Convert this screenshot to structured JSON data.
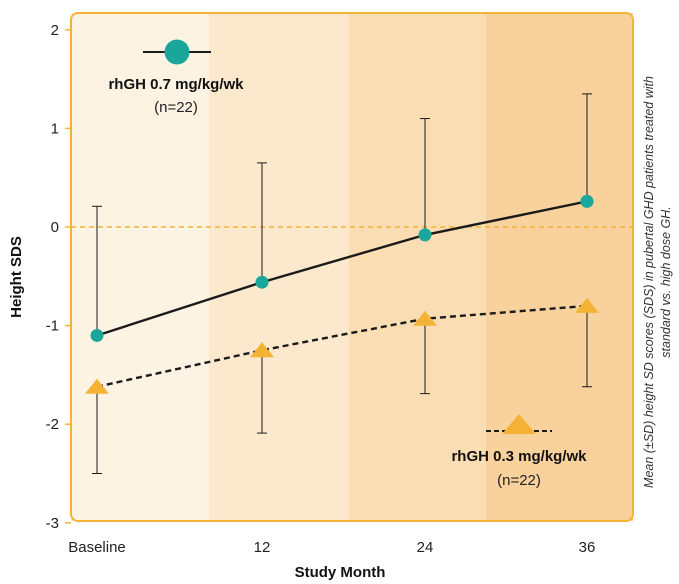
{
  "chart_data": {
    "type": "line",
    "xlabel": "Study Month",
    "ylabel": "Height SDS",
    "categories": [
      "Baseline",
      "12",
      "24",
      "36"
    ],
    "ylim": [
      -3,
      2
    ],
    "yticks": [
      "2",
      "1",
      "0",
      "-1",
      "-2",
      "-3"
    ],
    "reference_line": {
      "y": 0,
      "style": "dashed",
      "color": "#F5B335"
    },
    "series": [
      {
        "name": "rhGH 0.7 mg/kg/wk",
        "n_label": "(n=22)",
        "marker": "circle",
        "line_style": "solid",
        "color": "#1AA69A",
        "values": [
          -1.1,
          -0.56,
          -0.08,
          0.26
        ],
        "error_high": [
          0.21,
          0.65,
          1.1,
          1.35
        ],
        "error_low": [
          -1.1,
          -0.56,
          -0.08,
          0.26
        ]
      },
      {
        "name": "rhGH 0.3 mg/kg/wk",
        "n_label": "(n=22)",
        "marker": "triangle",
        "line_style": "dashed",
        "color": "#F5B335",
        "values": [
          -1.62,
          -1.25,
          -0.93,
          -0.8
        ],
        "error_high": [
          -1.62,
          -1.25,
          -0.93,
          -0.8
        ],
        "error_low": [
          -2.5,
          -2.09,
          -1.69,
          -1.62
        ]
      }
    ],
    "caption": "Mean (±SD) height SD scores (SDS) in pubertal GHD patients treated with standard vs. high dose GH.",
    "grid": false
  },
  "colors": {
    "frame": "#F5B335",
    "band1": "#FDF3E3",
    "band2": "#FCE8CC",
    "band3": "#FBDDB3",
    "band4": "#F9D19C",
    "line": "#1a1a1a",
    "errorbar": "#1a1a1a"
  }
}
